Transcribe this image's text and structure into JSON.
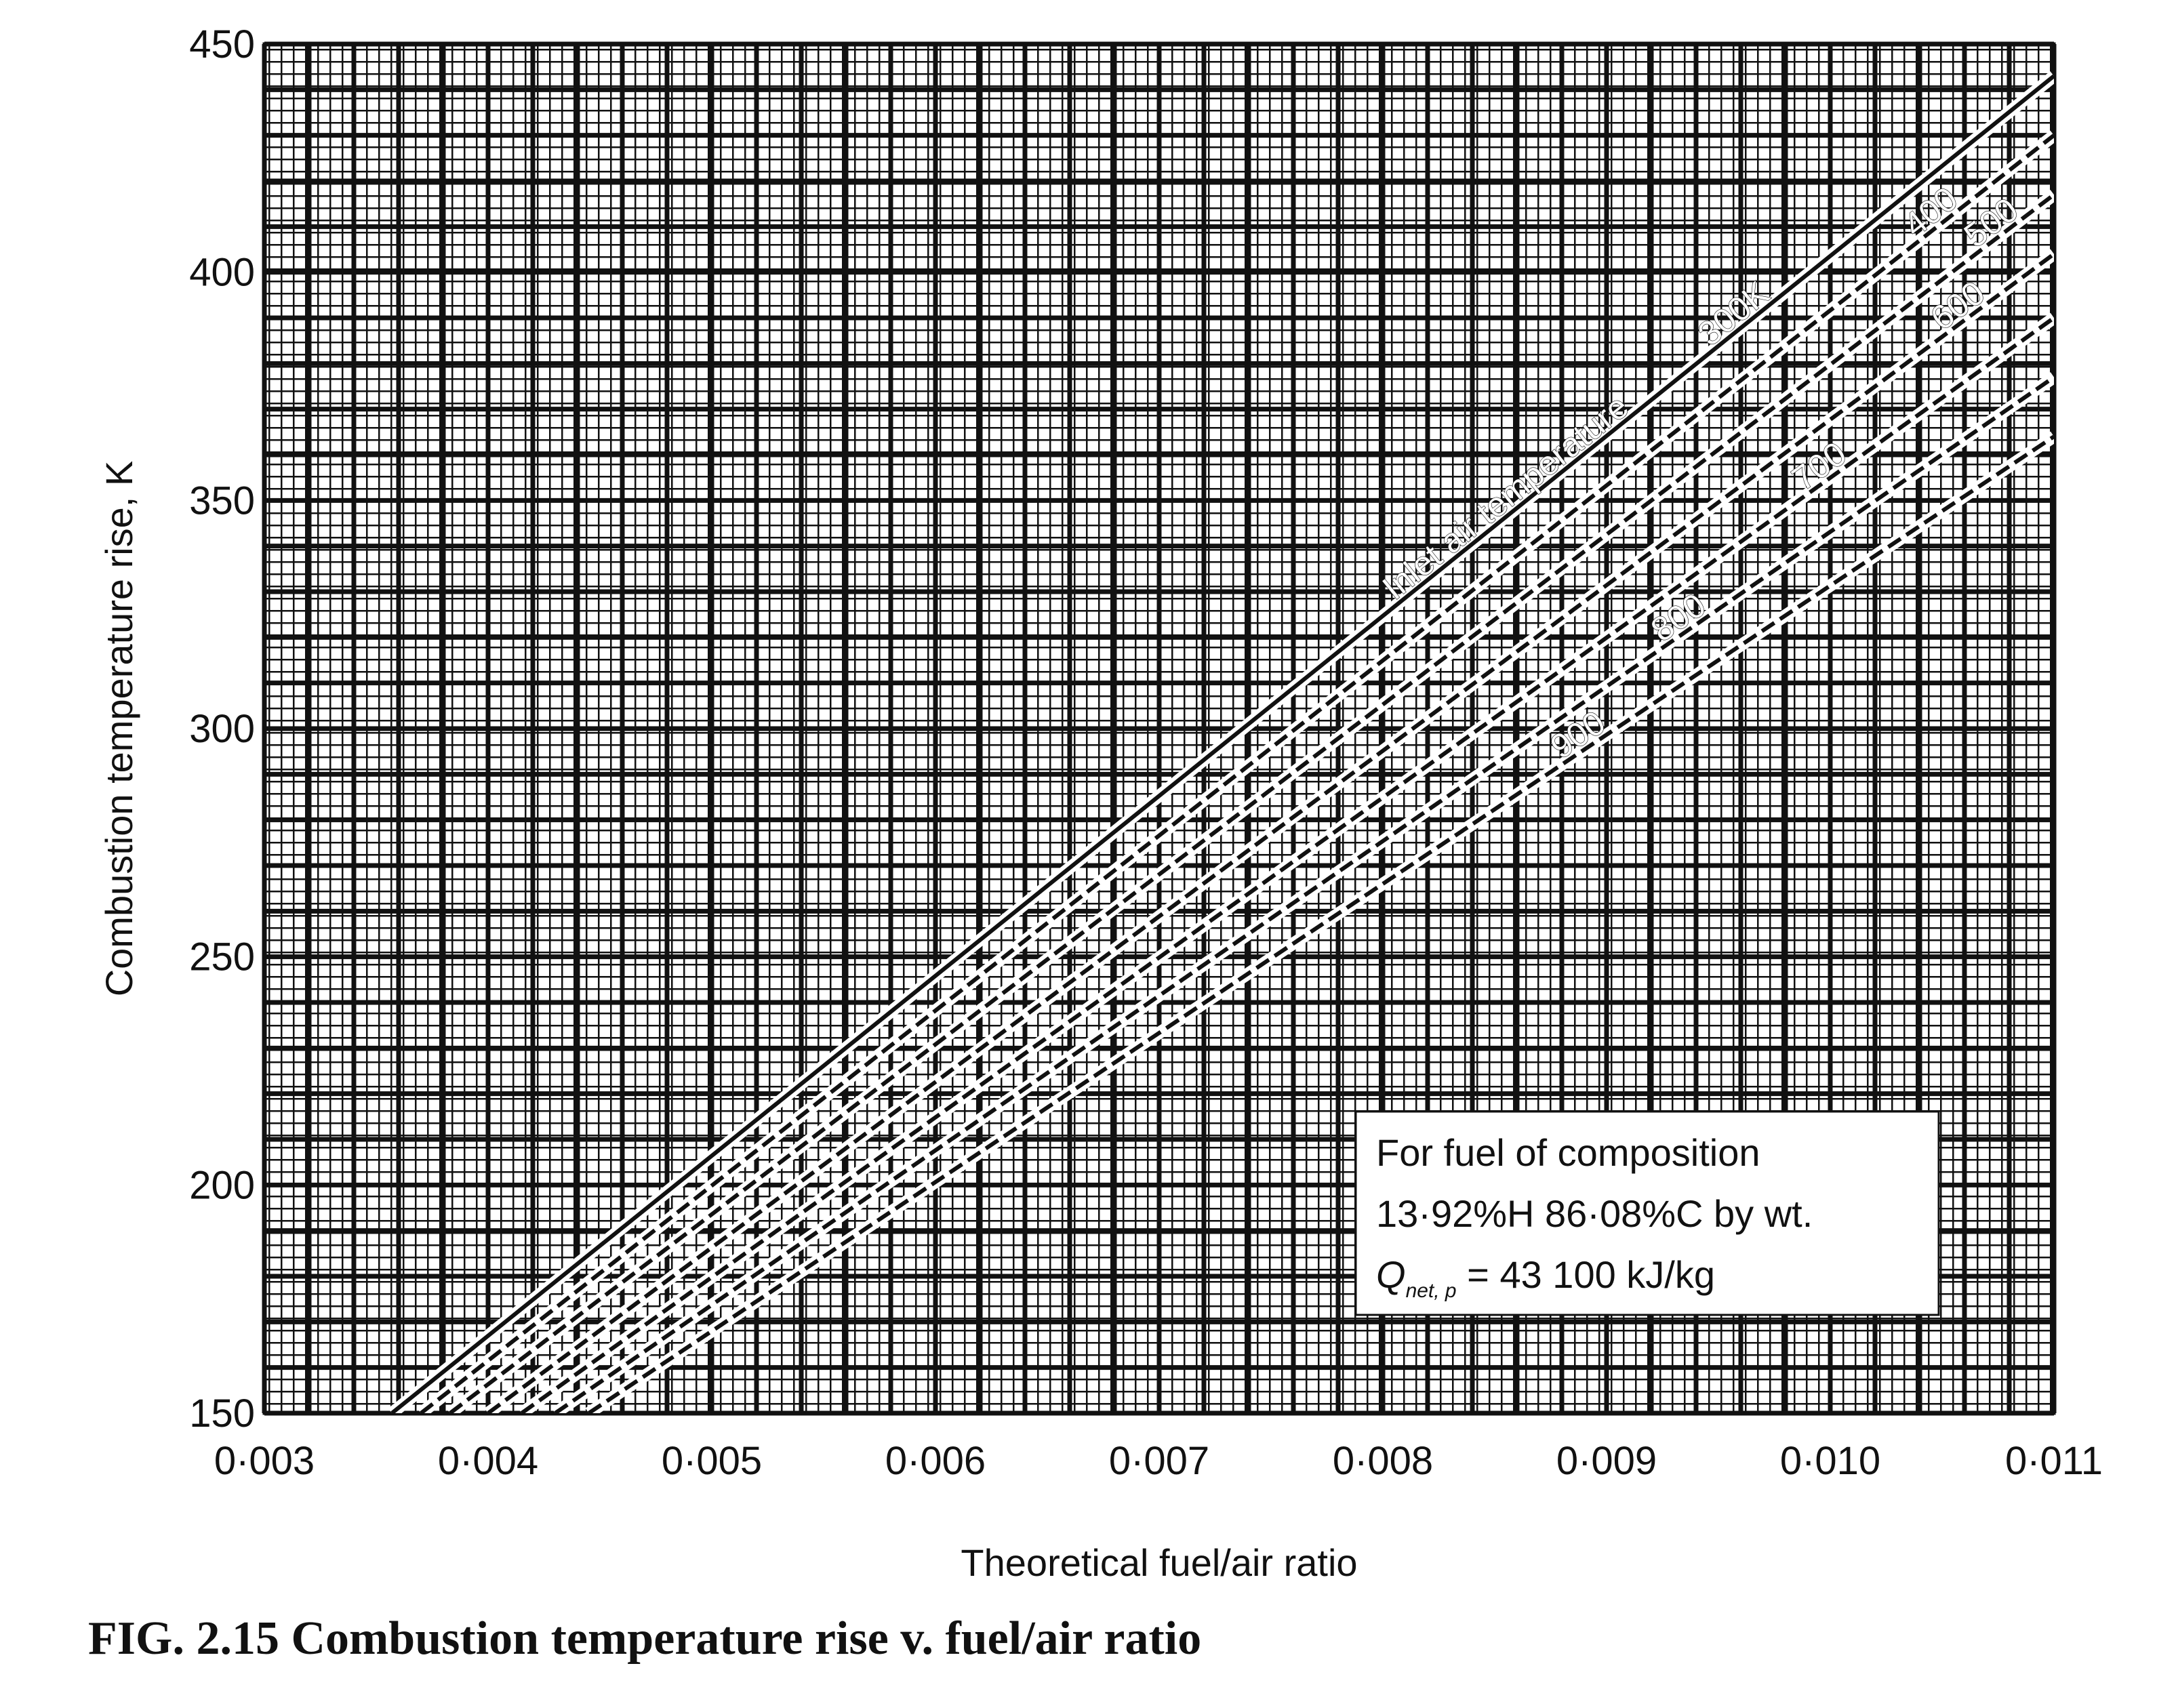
{
  "chart_data": {
    "type": "line",
    "title": "FIG. 2.15  Combustion temperature rise v. fuel/air ratio",
    "xlabel": "Theoretical fuel/air ratio",
    "ylabel": "Combustion temperature rise, K",
    "xlim": [
      0.003,
      0.011
    ],
    "ylim": [
      150,
      450
    ],
    "grid": true,
    "x_ticks": [
      {
        "value": 0.003,
        "label": "0·003"
      },
      {
        "value": 0.004,
        "label": "0·004"
      },
      {
        "value": 0.005,
        "label": "0·005"
      },
      {
        "value": 0.006,
        "label": "0·006"
      },
      {
        "value": 0.007,
        "label": "0·007"
      },
      {
        "value": 0.008,
        "label": "0·008"
      },
      {
        "value": 0.009,
        "label": "0·009"
      },
      {
        "value": 0.01,
        "label": "0·010"
      },
      {
        "value": 0.011,
        "label": "0·011"
      }
    ],
    "y_ticks": [
      {
        "value": 150,
        "label": "150"
      },
      {
        "value": 200,
        "label": "200"
      },
      {
        "value": 250,
        "label": "250"
      },
      {
        "value": 300,
        "label": "300"
      },
      {
        "value": 350,
        "label": "350"
      },
      {
        "value": 400,
        "label": "400"
      },
      {
        "value": 450,
        "label": "450"
      }
    ],
    "legend_title": "Inlet air temperature",
    "series": [
      {
        "name": "300K",
        "x": [
          0.00357,
          0.011
        ],
        "y": [
          150,
          443
        ]
      },
      {
        "name": "400",
        "x": [
          0.0037,
          0.011
        ],
        "y": [
          150,
          430
        ]
      },
      {
        "name": "500",
        "x": [
          0.00383,
          0.011
        ],
        "y": [
          150,
          417
        ]
      },
      {
        "name": "600",
        "x": [
          0.004,
          0.011
        ],
        "y": [
          150,
          404
        ]
      },
      {
        "name": "700",
        "x": [
          0.00415,
          0.011
        ],
        "y": [
          150,
          390
        ]
      },
      {
        "name": "800",
        "x": [
          0.0043,
          0.011
        ],
        "y": [
          150,
          377
        ]
      },
      {
        "name": "900",
        "x": [
          0.00445,
          0.011
        ],
        "y": [
          150,
          364
        ]
      }
    ],
    "annotation": {
      "lines": [
        "For fuel of composition",
        "13·92%H  86·08%C by wt.",
        "Q",
        "net, p",
        " = 43  100 kJ/kg"
      ]
    }
  }
}
